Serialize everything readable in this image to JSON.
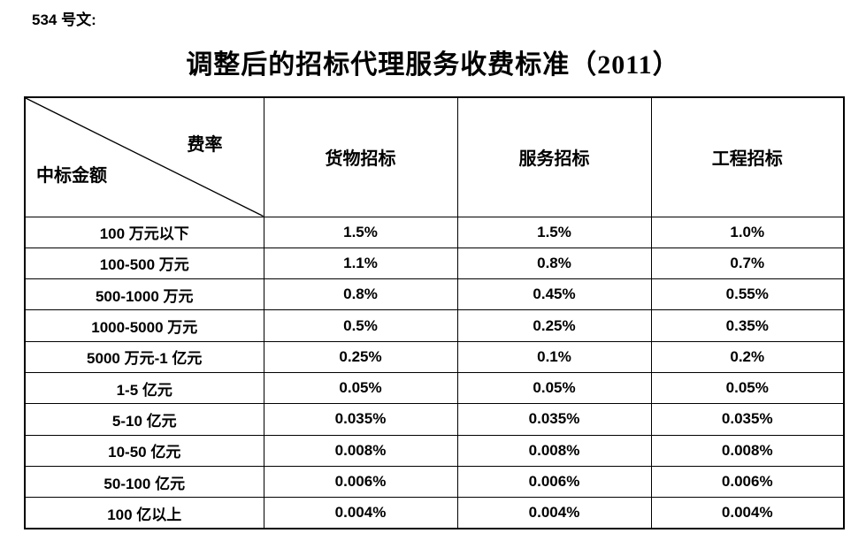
{
  "doc_label": "534 号文:",
  "title": "调整后的招标代理服务收费标准（2011）",
  "table": {
    "corner": {
      "top_right": "费率",
      "bottom_left": "中标金额"
    },
    "columns": [
      "货物招标",
      "服务招标",
      "工程招标"
    ],
    "rows": [
      {
        "label": "100 万元以下",
        "values": [
          "1.5%",
          "1.5%",
          "1.0%"
        ]
      },
      {
        "label": "100-500 万元",
        "values": [
          "1.1%",
          "0.8%",
          "0.7%"
        ]
      },
      {
        "label": "500-1000 万元",
        "values": [
          "0.8%",
          "0.45%",
          "0.55%"
        ]
      },
      {
        "label": "1000-5000 万元",
        "values": [
          "0.5%",
          "0.25%",
          "0.35%"
        ]
      },
      {
        "label": "5000 万元-1 亿元",
        "values": [
          "0.25%",
          "0.1%",
          "0.2%"
        ]
      },
      {
        "label": "1-5 亿元",
        "values": [
          "0.05%",
          "0.05%",
          "0.05%"
        ]
      },
      {
        "label": "5-10 亿元",
        "values": [
          "0.035%",
          "0.035%",
          "0.035%"
        ]
      },
      {
        "label": "10-50 亿元",
        "values": [
          "0.008%",
          "0.008%",
          "0.008%"
        ]
      },
      {
        "label": "50-100 亿元",
        "values": [
          "0.006%",
          "0.006%",
          "0.006%"
        ]
      },
      {
        "label": "100 亿以上",
        "values": [
          "0.004%",
          "0.004%",
          "0.004%"
        ]
      }
    ]
  },
  "colors": {
    "text": "#000000",
    "border": "#000000",
    "background": "#ffffff"
  }
}
